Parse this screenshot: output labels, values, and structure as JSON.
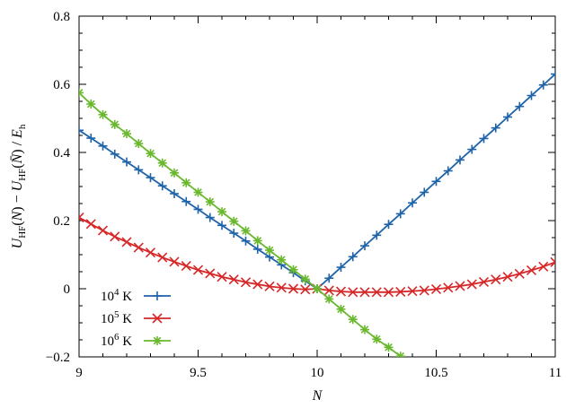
{
  "chart_data": {
    "type": "line",
    "xlabel": "N",
    "ylabel": "U_HF(N) − U_HF(N̄) / E_h",
    "xlim": [
      9,
      11
    ],
    "ylim": [
      -0.2,
      0.8
    ],
    "x_ticks": [
      "9",
      "9.5",
      "10",
      "10.5",
      "11"
    ],
    "y_ticks": [
      "−0.2",
      "0",
      "0.2",
      "0.4",
      "0.6",
      "0.8"
    ],
    "grid": false,
    "legend_position": "bottom-left",
    "series": [
      {
        "name": "10^4 K",
        "label_base": "10",
        "label_exp": "4",
        "label_unit": " K",
        "color": "#1f63a8",
        "marker": "plus",
        "x": [
          9.0,
          9.05,
          9.1,
          9.15,
          9.2,
          9.25,
          9.3,
          9.35,
          9.4,
          9.45,
          9.5,
          9.55,
          9.6,
          9.65,
          9.7,
          9.75,
          9.8,
          9.85,
          9.9,
          9.95,
          10.0,
          10.05,
          10.1,
          10.15,
          10.2,
          10.25,
          10.3,
          10.35,
          10.4,
          10.45,
          10.5,
          10.55,
          10.6,
          10.65,
          10.7,
          10.75,
          10.8,
          10.85,
          10.9,
          10.95,
          11.0
        ],
        "y": [
          0.465,
          0.442,
          0.419,
          0.395,
          0.372,
          0.349,
          0.326,
          0.302,
          0.279,
          0.256,
          0.233,
          0.209,
          0.186,
          0.163,
          0.14,
          0.116,
          0.093,
          0.07,
          0.047,
          0.023,
          0.0,
          0.031,
          0.063,
          0.094,
          0.126,
          0.157,
          0.189,
          0.22,
          0.252,
          0.283,
          0.315,
          0.346,
          0.378,
          0.409,
          0.441,
          0.472,
          0.504,
          0.535,
          0.567,
          0.598,
          0.63
        ]
      },
      {
        "name": "10^5 K",
        "label_base": "10",
        "label_exp": "5",
        "label_unit": " K",
        "color": "#d62728",
        "marker": "cross",
        "x": [
          9.0,
          9.05,
          9.1,
          9.15,
          9.2,
          9.25,
          9.3,
          9.35,
          9.4,
          9.45,
          9.5,
          9.55,
          9.6,
          9.65,
          9.7,
          9.75,
          9.8,
          9.85,
          9.9,
          9.95,
          10.0,
          10.05,
          10.1,
          10.15,
          10.2,
          10.25,
          10.3,
          10.35,
          10.4,
          10.45,
          10.5,
          10.55,
          10.6,
          10.65,
          10.7,
          10.75,
          10.8,
          10.85,
          10.9,
          10.95,
          11.0
        ],
        "y": [
          0.209,
          0.19,
          0.171,
          0.153,
          0.137,
          0.121,
          0.106,
          0.092,
          0.079,
          0.067,
          0.055,
          0.045,
          0.035,
          0.027,
          0.019,
          0.013,
          0.007,
          0.003,
          0.0,
          -0.002,
          0.0,
          -0.005,
          -0.008,
          -0.01,
          -0.01,
          -0.01,
          -0.01,
          -0.009,
          -0.007,
          -0.005,
          -0.001,
          0.003,
          0.008,
          0.013,
          0.02,
          0.027,
          0.035,
          0.044,
          0.054,
          0.065,
          0.078
        ]
      },
      {
        "name": "10^6 K",
        "label_base": "10",
        "label_exp": "6",
        "label_unit": " K",
        "color": "#6ab82e",
        "marker": "star",
        "x": [
          9.0,
          9.05,
          9.1,
          9.15,
          9.2,
          9.25,
          9.3,
          9.35,
          9.4,
          9.45,
          9.5,
          9.55,
          9.6,
          9.65,
          9.7,
          9.75,
          9.8,
          9.85,
          9.9,
          9.95,
          10.0,
          10.05,
          10.1,
          10.15,
          10.2,
          10.25,
          10.3,
          10.35
        ],
        "y": [
          0.575,
          0.542,
          0.511,
          0.482,
          0.455,
          0.426,
          0.397,
          0.369,
          0.34,
          0.311,
          0.283,
          0.255,
          0.226,
          0.198,
          0.17,
          0.141,
          0.113,
          0.085,
          0.056,
          0.028,
          0.0,
          -0.03,
          -0.06,
          -0.09,
          -0.12,
          -0.148,
          -0.172,
          -0.198
        ]
      }
    ]
  }
}
